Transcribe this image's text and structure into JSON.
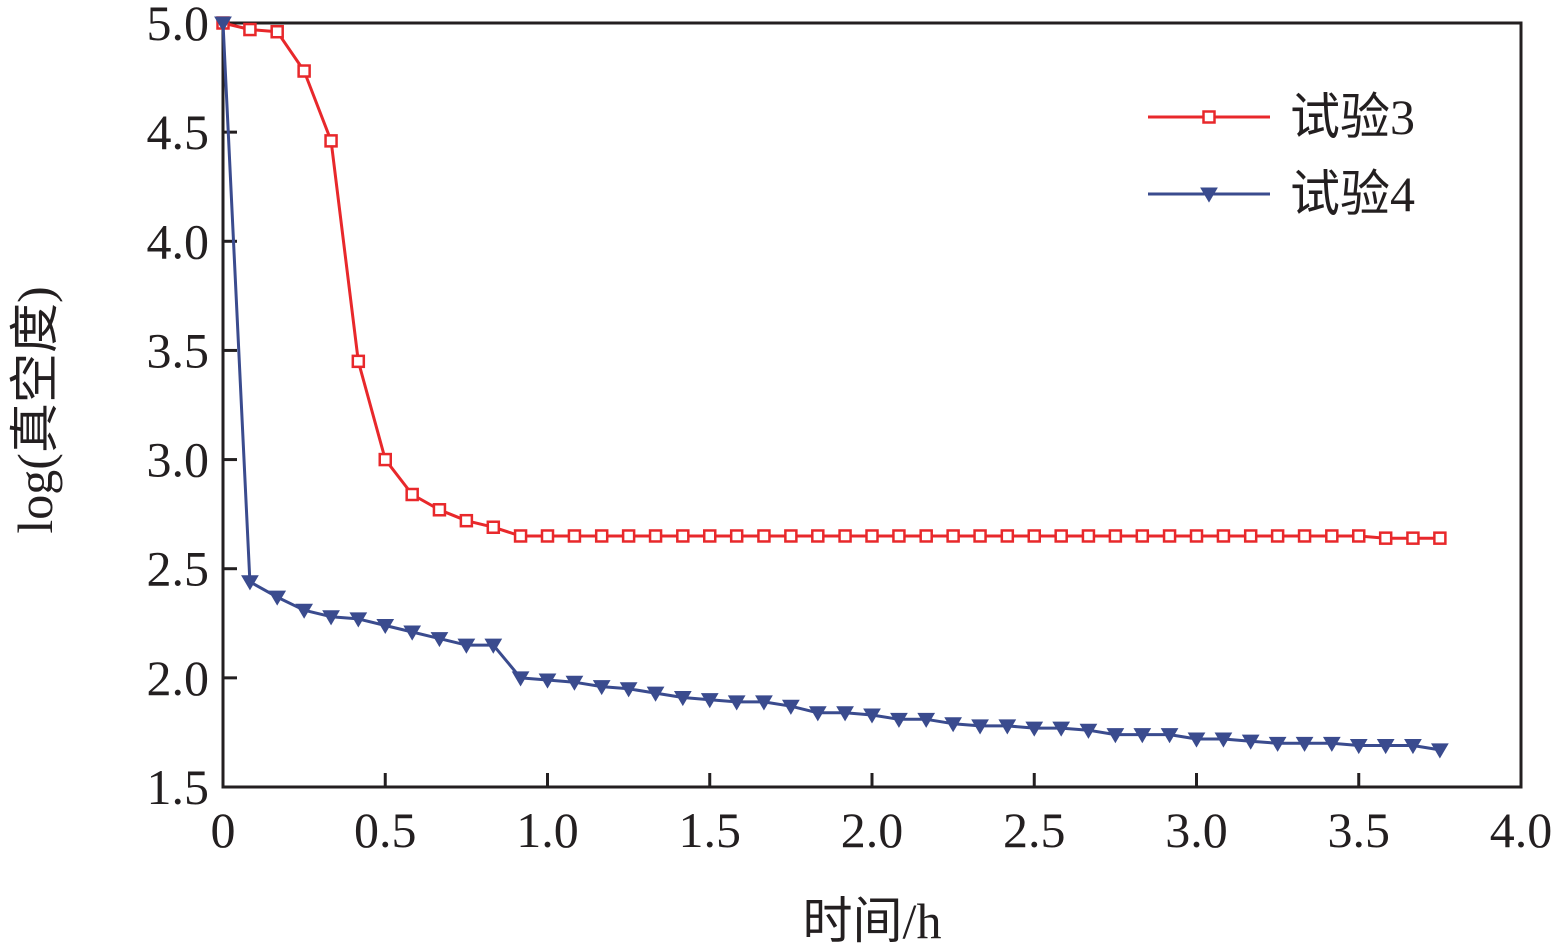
{
  "chart_data": {
    "type": "line",
    "title": "",
    "xlabel": "时间/h",
    "ylabel": "log(真空度)",
    "xlim": [
      0,
      4.0
    ],
    "ylim": [
      1.5,
      5.0
    ],
    "x_ticks": [
      0,
      0.5,
      1.0,
      1.5,
      2.0,
      2.5,
      3.0,
      3.5,
      4.0
    ],
    "x_tick_labels": [
      "0",
      "0.5",
      "1.0",
      "1.5",
      "2.0",
      "2.5",
      "3.0",
      "3.5",
      "4.0"
    ],
    "y_ticks": [
      1.5,
      2.0,
      2.5,
      3.0,
      3.5,
      4.0,
      4.5,
      5.0
    ],
    "y_tick_labels": [
      "1.5",
      "2.0",
      "2.5",
      "3.0",
      "3.5",
      "4.0",
      "4.5",
      "5.0"
    ],
    "grid": false,
    "legend_position": "top-right",
    "series": [
      {
        "name": "试验3",
        "color": "#e8282b",
        "marker": "open-square",
        "x": [
          0,
          0.083,
          0.167,
          0.25,
          0.333,
          0.417,
          0.5,
          0.583,
          0.667,
          0.75,
          0.833,
          0.917,
          1.0,
          1.083,
          1.167,
          1.25,
          1.333,
          1.417,
          1.5,
          1.583,
          1.667,
          1.75,
          1.833,
          1.917,
          2.0,
          2.083,
          2.167,
          2.25,
          2.333,
          2.417,
          2.5,
          2.583,
          2.667,
          2.75,
          2.833,
          2.917,
          3.0,
          3.083,
          3.167,
          3.25,
          3.333,
          3.417,
          3.5,
          3.583,
          3.667,
          3.75
        ],
        "y": [
          5.0,
          4.97,
          4.96,
          4.78,
          4.46,
          3.45,
          3.0,
          2.84,
          2.77,
          2.72,
          2.69,
          2.65,
          2.65,
          2.65,
          2.65,
          2.65,
          2.65,
          2.65,
          2.65,
          2.65,
          2.65,
          2.65,
          2.65,
          2.65,
          2.65,
          2.65,
          2.65,
          2.65,
          2.65,
          2.65,
          2.65,
          2.65,
          2.65,
          2.65,
          2.65,
          2.65,
          2.65,
          2.65,
          2.65,
          2.65,
          2.65,
          2.65,
          2.65,
          2.64,
          2.64,
          2.64
        ]
      },
      {
        "name": "试验4",
        "color": "#3a4b8e",
        "marker": "filled-down-triangle",
        "x": [
          0,
          0.083,
          0.167,
          0.25,
          0.333,
          0.417,
          0.5,
          0.583,
          0.667,
          0.75,
          0.833,
          0.917,
          1.0,
          1.083,
          1.167,
          1.25,
          1.333,
          1.417,
          1.5,
          1.583,
          1.667,
          1.75,
          1.833,
          1.917,
          2.0,
          2.083,
          2.167,
          2.25,
          2.333,
          2.417,
          2.5,
          2.583,
          2.667,
          2.75,
          2.833,
          2.917,
          3.0,
          3.083,
          3.167,
          3.25,
          3.333,
          3.417,
          3.5,
          3.583,
          3.667,
          3.75
        ],
        "y": [
          5.0,
          2.44,
          2.37,
          2.31,
          2.28,
          2.27,
          2.24,
          2.21,
          2.18,
          2.15,
          2.15,
          2.0,
          1.99,
          1.98,
          1.96,
          1.95,
          1.93,
          1.91,
          1.9,
          1.89,
          1.89,
          1.87,
          1.84,
          1.84,
          1.83,
          1.81,
          1.81,
          1.79,
          1.78,
          1.78,
          1.77,
          1.77,
          1.76,
          1.74,
          1.74,
          1.74,
          1.72,
          1.72,
          1.71,
          1.7,
          1.7,
          1.7,
          1.69,
          1.69,
          1.69,
          1.67
        ]
      }
    ]
  }
}
